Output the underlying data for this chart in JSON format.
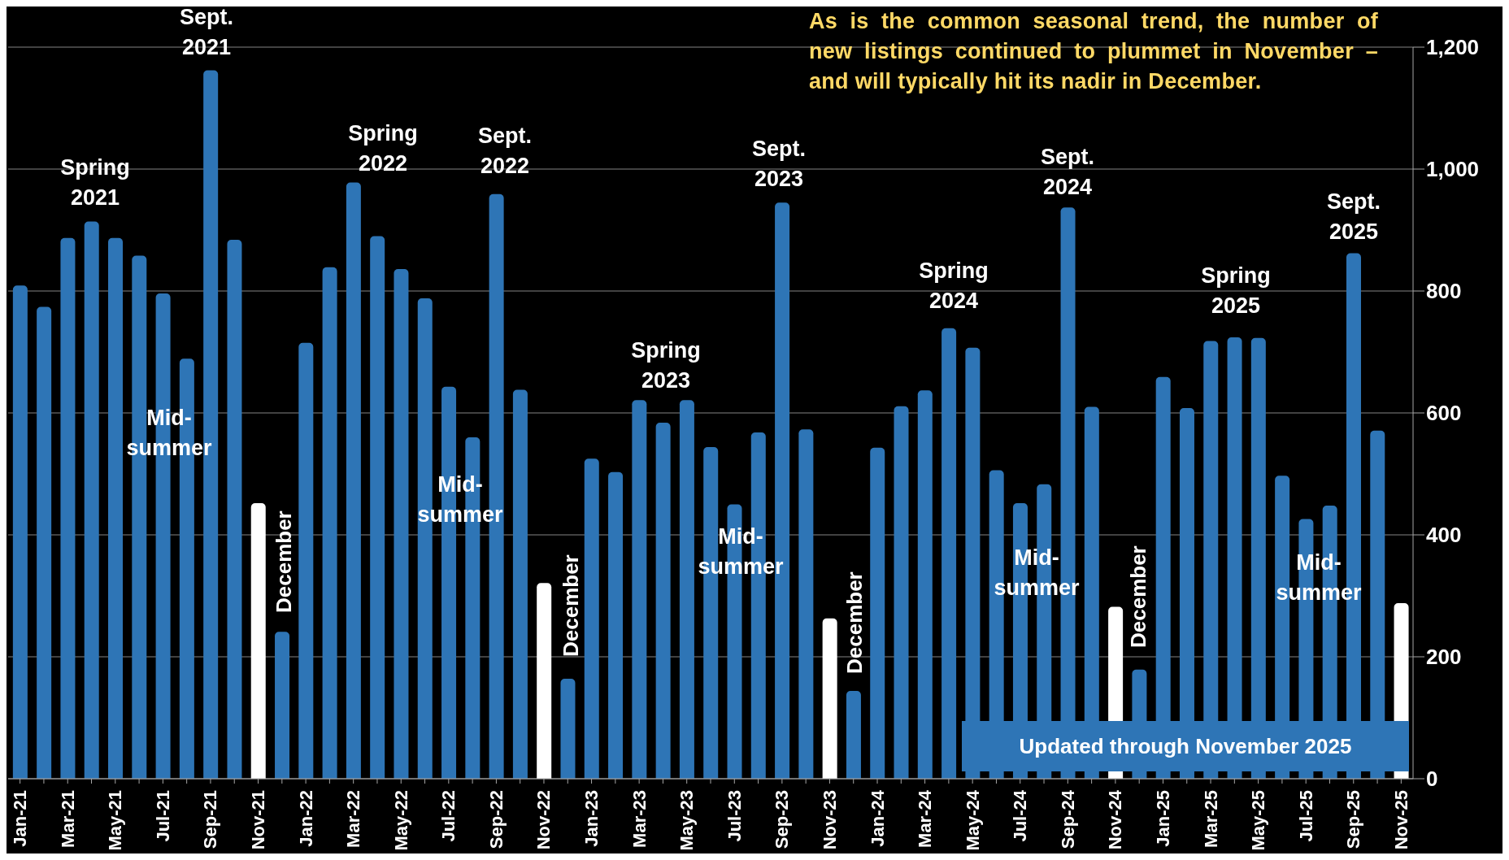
{
  "chart_data": {
    "type": "bar",
    "title": "As is the common seasonal trend, the number of new listings continued to plummet in November – and will typically hit its nadir in December.",
    "categories": [
      "Jan-21",
      null,
      "Mar-21",
      null,
      "May-21",
      null,
      "Jul-21",
      null,
      "Sep-21",
      null,
      "Nov-21",
      null,
      "Jan-22",
      null,
      "Mar-22",
      null,
      "May-22",
      null,
      "Jul-22",
      null,
      "Sep-22",
      null,
      "Nov-22",
      null,
      "Jan-23",
      null,
      "Mar-23",
      null,
      "May-23",
      null,
      "Jul-23",
      null,
      "Sep-23",
      null,
      "Nov-23",
      null,
      "Jan-24",
      null,
      "Mar-24",
      null,
      "May-24",
      null,
      "Jul-24",
      null,
      "Sep-24",
      null,
      "Nov-24",
      null,
      "Jan-25",
      null,
      "Mar-25",
      null,
      "May-25",
      null,
      "Jul-25",
      null,
      "Sep-25",
      null,
      "Nov-25"
    ],
    "values": [
      809,
      774,
      887,
      914,
      887,
      858,
      796,
      689,
      1162,
      884,
      452,
      241,
      715,
      839,
      978,
      890,
      836,
      788,
      643,
      560,
      959,
      638,
      321,
      164,
      525,
      503,
      621,
      584,
      621,
      544,
      450,
      568,
      945,
      573,
      263,
      144,
      543,
      611,
      637,
      739,
      707,
      506,
      452,
      483,
      937,
      610,
      282,
      179,
      659,
      608,
      718,
      724,
      723,
      497,
      426,
      448,
      862,
      571,
      288
    ],
    "colors": [
      "#2e75b6",
      "#2e75b6",
      "#2e75b6",
      "#2e75b6",
      "#2e75b6",
      "#2e75b6",
      "#2e75b6",
      "#2e75b6",
      "#2e75b6",
      "#2e75b6",
      "#ffffff",
      "#2e75b6",
      "#2e75b6",
      "#2e75b6",
      "#2e75b6",
      "#2e75b6",
      "#2e75b6",
      "#2e75b6",
      "#2e75b6",
      "#2e75b6",
      "#2e75b6",
      "#2e75b6",
      "#ffffff",
      "#2e75b6",
      "#2e75b6",
      "#2e75b6",
      "#2e75b6",
      "#2e75b6",
      "#2e75b6",
      "#2e75b6",
      "#2e75b6",
      "#2e75b6",
      "#2e75b6",
      "#2e75b6",
      "#ffffff",
      "#2e75b6",
      "#2e75b6",
      "#2e75b6",
      "#2e75b6",
      "#2e75b6",
      "#2e75b6",
      "#2e75b6",
      "#2e75b6",
      "#2e75b6",
      "#2e75b6",
      "#2e75b6",
      "#ffffff",
      "#2e75b6",
      "#2e75b6",
      "#2e75b6",
      "#2e75b6",
      "#2e75b6",
      "#2e75b6",
      "#2e75b6",
      "#2e75b6",
      "#2e75b6",
      "#2e75b6",
      "#2e75b6",
      "#ffffff"
    ],
    "ylim": [
      0,
      1200
    ],
    "yticks": [
      0,
      200,
      400,
      600,
      800,
      {
        "value": 1000,
        "label": "1,000"
      },
      {
        "value": 1200,
        "label": "1,200"
      }
    ],
    "grid": "y",
    "legend": false,
    "annotations": [
      "Spring 2021",
      "Sept. 2021",
      "Mid-summer",
      "December",
      "Spring 2022",
      "Sept. 2022",
      "Mid-summer",
      "December",
      "Spring 2023",
      "Sept. 2023",
      "Mid-summer",
      "December",
      "Spring 2024",
      "Sept. 2024",
      "Mid-summer",
      "December",
      "Spring 2025",
      "Sept. 2025",
      "Mid-summer",
      "Updated through November 2025"
    ]
  }
}
